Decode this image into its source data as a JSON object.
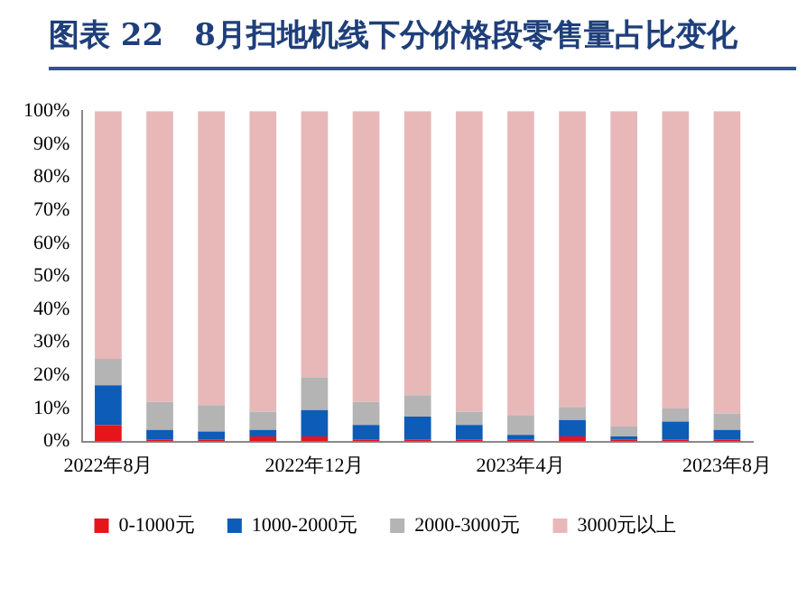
{
  "chart_data": {
    "type": "bar",
    "title": "图表 22　8月扫地机线下分价格段零售量占比变化",
    "stacked": true,
    "categories": [
      "2022年8月",
      null,
      null,
      null,
      "2022年12月",
      null,
      null,
      null,
      "2023年4月",
      null,
      null,
      null,
      "2023年8月"
    ],
    "series": [
      {
        "name": "0-1000元",
        "color": "#e8141c",
        "values": [
          5,
          0.5,
          0.5,
          1.5,
          1.5,
          0.5,
          0.5,
          0.5,
          0.5,
          1.5,
          0.5,
          0.5,
          0.5
        ]
      },
      {
        "name": "1000-2000元",
        "color": "#0c5cb8",
        "values": [
          12,
          3,
          2.5,
          2,
          8,
          4.5,
          7,
          4.5,
          1.5,
          5,
          1,
          5.5,
          3
        ]
      },
      {
        "name": "2000-3000元",
        "color": "#b4b4b4",
        "values": [
          8,
          8.5,
          8,
          5.5,
          10,
          7,
          6.5,
          4,
          6,
          4,
          3,
          4,
          5
        ]
      },
      {
        "name": "3000元以上",
        "color": "#e8b8b8",
        "values": [
          75,
          88,
          89,
          91,
          80.5,
          88,
          86,
          91,
          92,
          89.5,
          95.5,
          90,
          91.5
        ]
      }
    ],
    "ylim": [
      0,
      100
    ],
    "yticks": [
      {
        "value": 0,
        "label": "0%"
      },
      {
        "value": 10,
        "label": "10%"
      },
      {
        "value": 20,
        "label": "20%"
      },
      {
        "value": 30,
        "label": "30%"
      },
      {
        "value": 40,
        "label": "40%"
      },
      {
        "value": 50,
        "label": "50%"
      },
      {
        "value": 60,
        "label": "60%"
      },
      {
        "value": 70,
        "label": "70%"
      },
      {
        "value": 80,
        "label": "80%"
      },
      {
        "value": 90,
        "label": "90%"
      },
      {
        "value": 100,
        "label": "100%"
      }
    ],
    "grid": false,
    "legend": "bottom"
  }
}
